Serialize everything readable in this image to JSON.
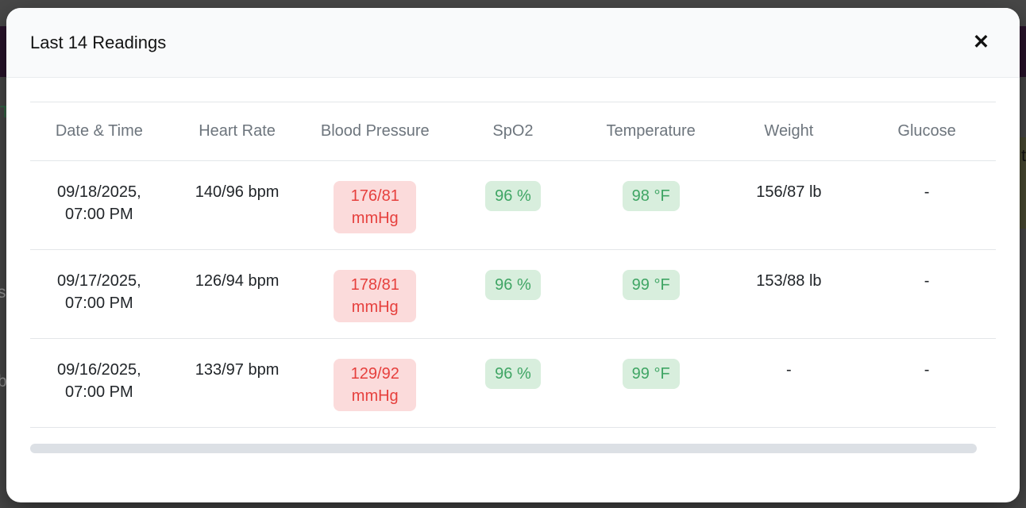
{
  "modal": {
    "title": "Last 14 Readings",
    "close_icon": "✕"
  },
  "table": {
    "columns": [
      "Date & Time",
      "Heart Rate",
      "Blood Pressure",
      "SpO2",
      "Temperature",
      "Weight",
      "Glucose"
    ],
    "rows": [
      {
        "date_time": "09/18/2025, 07:00 PM",
        "heart_rate": "140/96 bpm",
        "blood_pressure": "176/81 mmHg",
        "spo2": "96 %",
        "temperature": "98 °F",
        "weight": "156/87 lb",
        "glucose": "-"
      },
      {
        "date_time": "09/17/2025, 07:00 PM",
        "heart_rate": "126/94 bpm",
        "blood_pressure": "178/81 mmHg",
        "spo2": "96 %",
        "temperature": "99 °F",
        "weight": "153/88 lb",
        "glucose": "-"
      },
      {
        "date_time": "09/16/2025, 07:00 PM",
        "heart_rate": "133/97 bpm",
        "blood_pressure": "129/92 mmHg",
        "spo2": "96 %",
        "temperature": "99 °F",
        "weight": "-",
        "glucose": "-"
      }
    ]
  },
  "backdrop": {
    "fragments": {
      "left_top": "T",
      "left_mid": "s",
      "left_bottom": "b",
      "right": "t"
    }
  },
  "colors": {
    "backdrop_bg": "#484848",
    "backdrop_band": "#29132b",
    "backdrop_patch": "#4a4b33",
    "header_bg": "#f9fafb",
    "header_border": "#e9ecef",
    "th_color": "#6d757d",
    "td_color": "#212529",
    "row_border": "#e3e6e9",
    "bp_badge_bg": "#fbdbdb",
    "bp_badge_text": "#e6403d",
    "ok_badge_bg": "#d8eedd",
    "ok_badge_text": "#3fa564",
    "scrollbar_color": "#dce0e5"
  }
}
